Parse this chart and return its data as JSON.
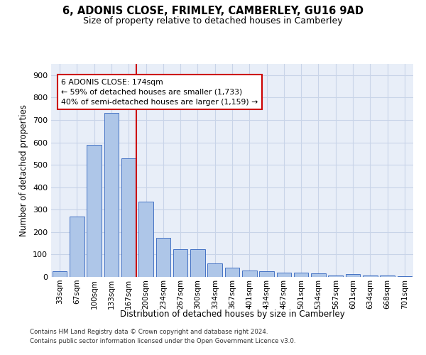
{
  "title": "6, ADONIS CLOSE, FRIMLEY, CAMBERLEY, GU16 9AD",
  "subtitle": "Size of property relative to detached houses in Camberley",
  "xlabel": "Distribution of detached houses by size in Camberley",
  "ylabel": "Number of detached properties",
  "bar_labels": [
    "33sqm",
    "67sqm",
    "100sqm",
    "133sqm",
    "167sqm",
    "200sqm",
    "234sqm",
    "267sqm",
    "300sqm",
    "334sqm",
    "367sqm",
    "401sqm",
    "434sqm",
    "467sqm",
    "501sqm",
    "534sqm",
    "567sqm",
    "601sqm",
    "634sqm",
    "668sqm",
    "701sqm"
  ],
  "bar_values": [
    25,
    270,
    590,
    730,
    530,
    335,
    175,
    125,
    125,
    60,
    40,
    30,
    25,
    20,
    20,
    15,
    5,
    13,
    5,
    5,
    3
  ],
  "bar_color": "#aec6e8",
  "bar_edge_color": "#4472c4",
  "property_line_x": 4.43,
  "property_line_color": "#cc0000",
  "annotation_line1": "6 ADONIS CLOSE: 174sqm",
  "annotation_line2": "← 59% of detached houses are smaller (1,733)",
  "annotation_line3": "40% of semi-detached houses are larger (1,159) →",
  "annotation_box_color": "#cc0000",
  "ylim": [
    0,
    950
  ],
  "yticks": [
    0,
    100,
    200,
    300,
    400,
    500,
    600,
    700,
    800,
    900
  ],
  "grid_color": "#c8d4e8",
  "background_color": "#e8eef8",
  "footer_line1": "Contains HM Land Registry data © Crown copyright and database right 2024.",
  "footer_line2": "Contains public sector information licensed under the Open Government Licence v3.0."
}
